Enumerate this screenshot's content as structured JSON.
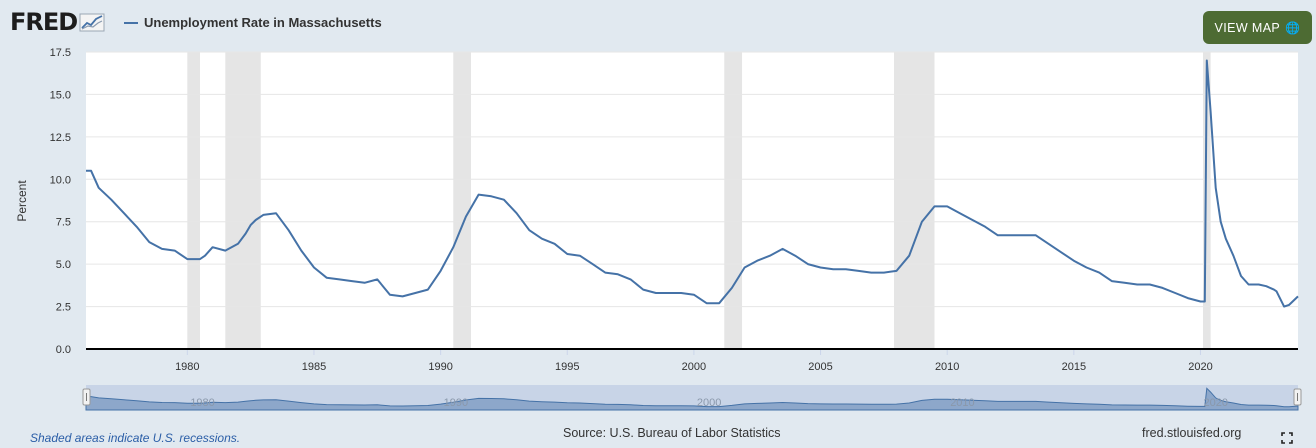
{
  "header": {
    "logo_text": "FRED",
    "legend_label": "Unemployment Rate in Massachusetts",
    "view_map_label": "VIEW MAP"
  },
  "footer": {
    "recessions_note": "Shaded areas indicate U.S. recessions.",
    "source": "Source: U.S. Bureau of Labor Statistics",
    "url": "fred.stlouisfed.org"
  },
  "colors": {
    "series": "#4572a7",
    "recession": "#e5e5e5",
    "button": "#4d6b33",
    "background": "#e1e9f0"
  },
  "chart_data": {
    "type": "line",
    "title": "",
    "xlabel": "",
    "ylabel": "Percent",
    "xlim": [
      1976.0,
      2023.85
    ],
    "ylim": [
      0,
      17.5
    ],
    "y_ticks": [
      "0.0",
      "2.5",
      "5.0",
      "7.5",
      "10.0",
      "12.5",
      "15.0",
      "17.5"
    ],
    "x_ticks": [
      "1980",
      "1985",
      "1990",
      "1995",
      "2000",
      "2005",
      "2010",
      "2015",
      "2020"
    ],
    "grid": true,
    "recessions": [
      [
        1980.0,
        1980.5
      ],
      [
        1981.5,
        1982.9
      ],
      [
        1990.5,
        1991.2
      ],
      [
        2001.2,
        2001.9
      ],
      [
        2007.9,
        2009.5
      ],
      [
        2020.1,
        2020.4
      ]
    ],
    "navigator_labels": [
      "1980",
      "1990",
      "2000",
      "2010",
      "2020"
    ],
    "series": [
      {
        "name": "Unemployment Rate in Massachusetts",
        "x": [
          1976.0,
          1976.2,
          1976.5,
          1977.0,
          1977.5,
          1978.0,
          1978.5,
          1979.0,
          1979.5,
          1980.0,
          1980.5,
          1980.7,
          1981.0,
          1981.5,
          1982.0,
          1982.3,
          1982.5,
          1982.7,
          1983.0,
          1983.5,
          1984.0,
          1984.5,
          1985.0,
          1985.5,
          1986.0,
          1986.5,
          1987.0,
          1987.5,
          1988.0,
          1988.5,
          1989.0,
          1989.5,
          1990.0,
          1990.5,
          1991.0,
          1991.5,
          1992.0,
          1992.5,
          1993.0,
          1993.5,
          1994.0,
          1994.5,
          1995.0,
          1995.5,
          1996.0,
          1996.5,
          1997.0,
          1997.5,
          1998.0,
          1998.5,
          1999.0,
          1999.5,
          2000.0,
          2000.5,
          2001.0,
          2001.5,
          2002.0,
          2002.5,
          2003.0,
          2003.5,
          2004.0,
          2004.5,
          2005.0,
          2005.5,
          2006.0,
          2006.5,
          2007.0,
          2007.5,
          2008.0,
          2008.5,
          2009.0,
          2009.5,
          2010.0,
          2010.5,
          2011.0,
          2011.5,
          2012.0,
          2012.5,
          2013.0,
          2013.5,
          2014.0,
          2014.5,
          2015.0,
          2015.5,
          2016.0,
          2016.5,
          2017.0,
          2017.5,
          2018.0,
          2018.5,
          2019.0,
          2019.5,
          2020.0,
          2020.17,
          2020.25,
          2020.4,
          2020.6,
          2020.8,
          2021.0,
          2021.3,
          2021.6,
          2021.9,
          2022.0,
          2022.3,
          2022.6,
          2022.9,
          2023.0,
          2023.3,
          2023.5,
          2023.85
        ],
        "values": [
          10.5,
          10.5,
          9.5,
          8.8,
          8.0,
          7.2,
          6.3,
          5.9,
          5.8,
          5.3,
          5.3,
          5.5,
          6.0,
          5.8,
          6.2,
          6.8,
          7.3,
          7.6,
          7.9,
          8.0,
          7.0,
          5.8,
          4.8,
          4.2,
          4.1,
          4.0,
          3.9,
          4.1,
          3.2,
          3.1,
          3.3,
          3.5,
          4.6,
          6.0,
          7.8,
          9.1,
          9.0,
          8.8,
          8.0,
          7.0,
          6.5,
          6.2,
          5.6,
          5.5,
          5.0,
          4.5,
          4.4,
          4.1,
          3.5,
          3.3,
          3.3,
          3.3,
          3.2,
          2.7,
          2.7,
          3.6,
          4.8,
          5.2,
          5.5,
          5.9,
          5.5,
          5.0,
          4.8,
          4.7,
          4.7,
          4.6,
          4.5,
          4.5,
          4.6,
          5.5,
          7.5,
          8.4,
          8.4,
          8.0,
          7.6,
          7.2,
          6.7,
          6.7,
          6.7,
          6.7,
          6.2,
          5.7,
          5.2,
          4.8,
          4.5,
          4.0,
          3.9,
          3.8,
          3.8,
          3.6,
          3.3,
          3.0,
          2.8,
          2.8,
          17.0,
          14.0,
          9.5,
          7.5,
          6.5,
          5.5,
          4.3,
          3.8,
          3.8,
          3.8,
          3.7,
          3.5,
          3.4,
          2.5,
          2.6,
          3.1
        ]
      }
    ]
  }
}
